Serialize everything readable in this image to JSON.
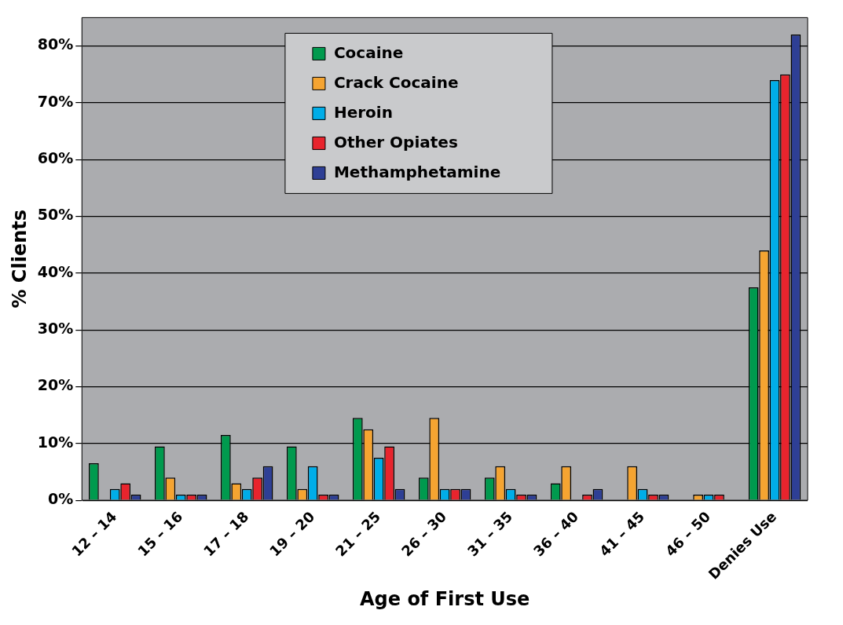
{
  "chart_data": {
    "type": "bar",
    "xlabel": "Age of First Use",
    "ylabel": "% Clients",
    "categories": [
      "12 – 14",
      "15 – 16",
      "17 – 18",
      "19 – 20",
      "21 – 25",
      "26 – 30",
      "31 – 35",
      "36 – 40",
      "41 – 45",
      "46 – 50",
      "Denies Use"
    ],
    "series": [
      {
        "name": "Cocaine",
        "color": "#009a4e",
        "values": [
          6.5,
          9.5,
          11.5,
          9.5,
          14.5,
          4,
          4,
          3,
          0,
          0,
          37.5
        ]
      },
      {
        "name": "Crack Cocaine",
        "color": "#f5a431",
        "values": [
          0,
          4,
          3,
          2,
          12.5,
          14.5,
          6,
          6,
          6,
          1,
          44
        ]
      },
      {
        "name": "Heroin",
        "color": "#00ade8",
        "values": [
          2,
          1,
          2,
          6,
          7.5,
          2,
          2,
          0,
          2,
          1,
          74
        ]
      },
      {
        "name": "Other Opiates",
        "color": "#e8242d",
        "values": [
          3,
          1,
          4,
          1,
          9.5,
          2,
          1,
          1,
          1,
          1,
          75
        ]
      },
      {
        "name": "Methamphetamine",
        "color": "#2e3f95",
        "values": [
          1,
          1,
          6,
          1,
          2,
          2,
          1,
          2,
          1,
          0,
          82
        ]
      }
    ],
    "ylim": [
      0,
      85
    ],
    "yticks": [
      {
        "value": 0,
        "label": "0%"
      },
      {
        "value": 10,
        "label": "10%"
      },
      {
        "value": 20,
        "label": "20%"
      },
      {
        "value": 30,
        "label": "30%"
      },
      {
        "value": 40,
        "label": "40%"
      },
      {
        "value": 50,
        "label": "50%"
      },
      {
        "value": 60,
        "label": "60%"
      },
      {
        "value": 70,
        "label": "70%"
      },
      {
        "value": 80,
        "label": "80%"
      }
    ],
    "grid": "y",
    "legend": "top"
  }
}
